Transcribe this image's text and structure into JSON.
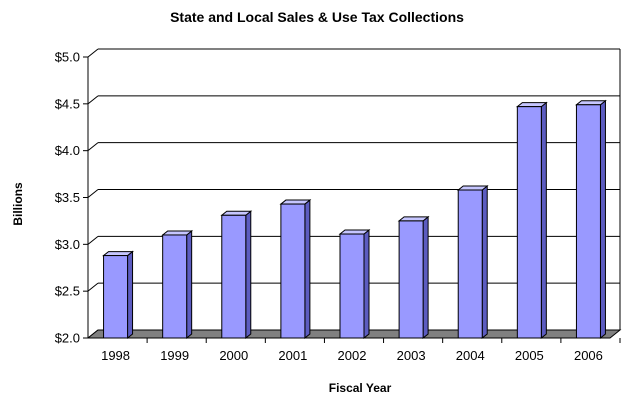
{
  "chart_data": {
    "type": "bar",
    "title": "State and Local Sales & Use Tax Collections",
    "xlabel": "Fiscal Year",
    "ylabel": "Billions",
    "categories": [
      "1998",
      "1999",
      "2000",
      "2001",
      "2002",
      "2003",
      "2004",
      "2005",
      "2006"
    ],
    "values": [
      2.88,
      3.1,
      3.31,
      3.43,
      3.11,
      3.25,
      3.58,
      4.47,
      4.49
    ],
    "ylim": [
      2.0,
      5.0
    ],
    "yticks": [
      2.0,
      2.5,
      3.0,
      3.5,
      4.0,
      4.5,
      5.0
    ],
    "ytick_labels": [
      "$2.0",
      "$2.5",
      "$3.0",
      "$3.5",
      "$4.0",
      "$4.5",
      "$5.0"
    ],
    "grid": true,
    "legend": "none",
    "style": "3d-column",
    "colors": {
      "bar_front": "#9999ff",
      "bar_top": "#c6c6ff",
      "bar_side": "#5c5cc0",
      "floor": "#808080",
      "gridline": "#000000",
      "outline": "#000000"
    }
  }
}
